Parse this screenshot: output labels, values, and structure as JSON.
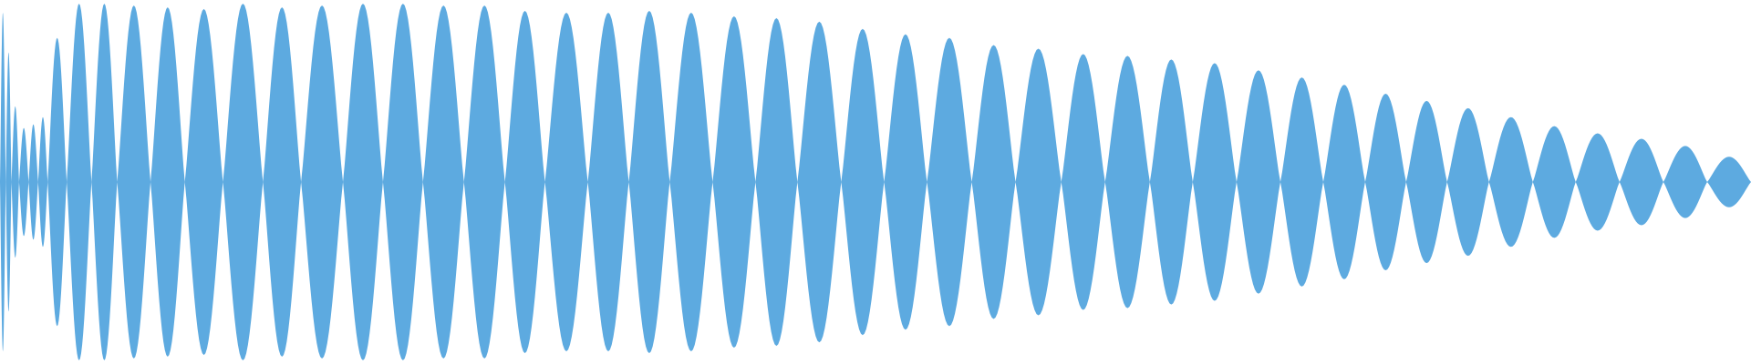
{
  "waveform": {
    "color": "#5DAAE0",
    "background": "#FFFFFF",
    "segment_count": 48,
    "peak_levels": [
      0.94,
      0.72,
      0.42,
      0.3,
      0.32,
      0.36,
      0.8,
      0.99,
      0.99,
      0.98,
      0.97,
      0.96,
      0.99,
      0.97,
      0.98,
      0.99,
      0.99,
      0.98,
      0.98,
      0.95,
      0.94,
      0.94,
      0.95,
      0.94,
      0.92,
      0.91,
      0.89,
      0.85,
      0.82,
      0.8,
      0.76,
      0.74,
      0.71,
      0.7,
      0.68,
      0.66,
      0.62,
      0.58,
      0.54,
      0.49,
      0.45,
      0.41,
      0.36,
      0.31,
      0.27,
      0.24,
      0.2,
      0.14
    ]
  }
}
